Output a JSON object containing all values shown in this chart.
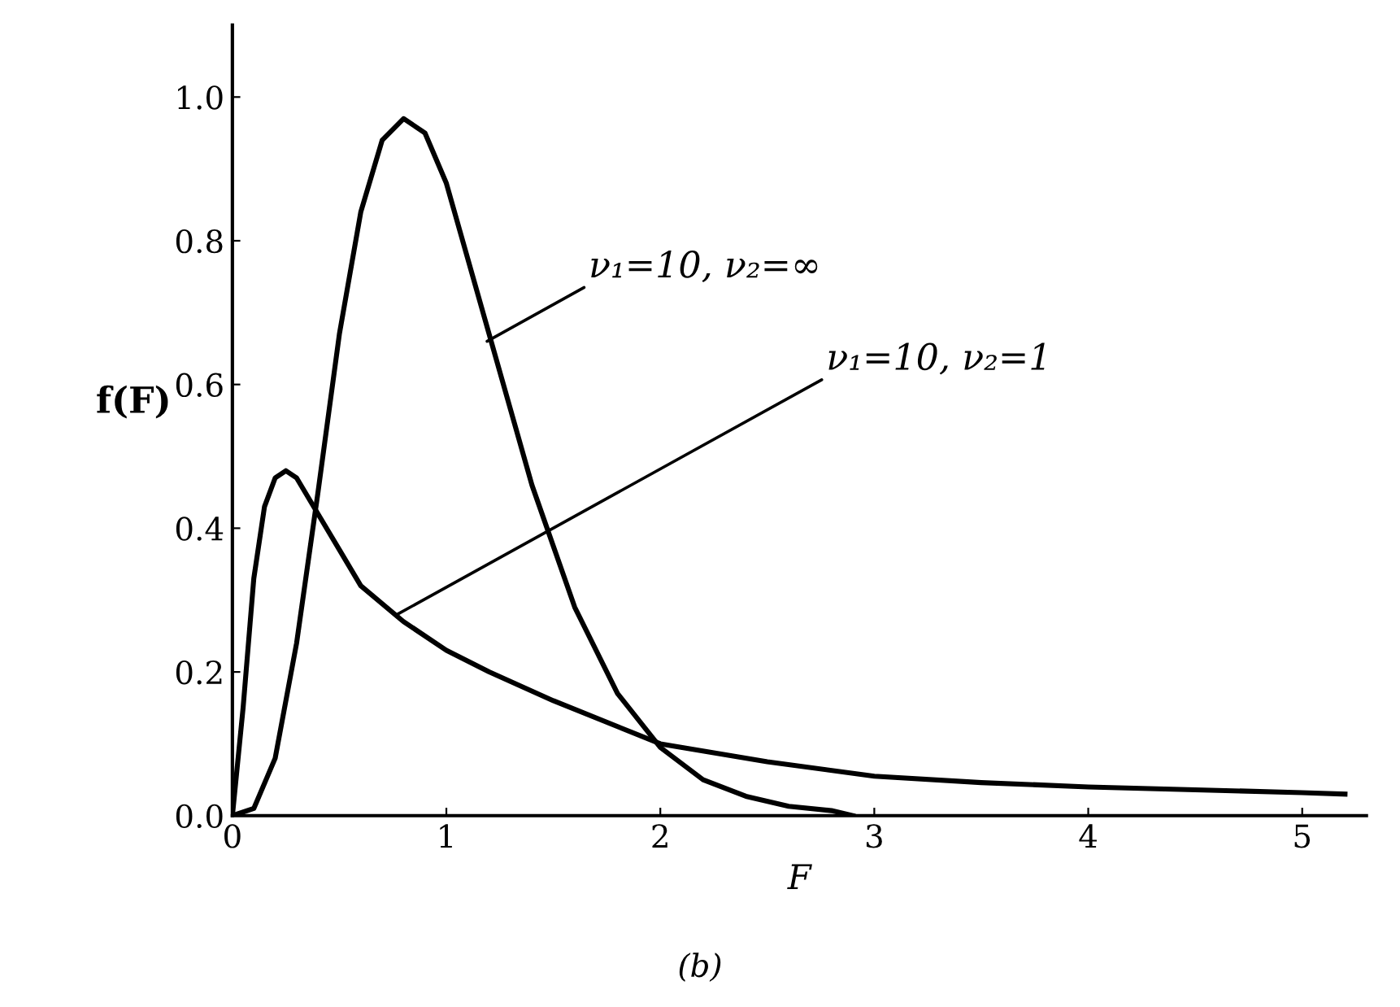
{
  "chart_data": {
    "type": "line",
    "xlabel": "F",
    "ylabel": "f(F)",
    "xlim": [
      0,
      5.3
    ],
    "ylim": [
      0,
      1.1
    ],
    "xticks": [
      0,
      1,
      2,
      3,
      4,
      5
    ],
    "yticks": [
      {
        "value": 0,
        "label": "0.0"
      },
      {
        "value": 0.2,
        "label": "0.2"
      },
      {
        "value": 0.4,
        "label": "0.4"
      },
      {
        "value": 0.6,
        "label": "0.6"
      },
      {
        "value": 0.8,
        "label": "0.8"
      },
      {
        "value": 1.0,
        "label": "1.0"
      }
    ],
    "grid": false,
    "legend": false,
    "marker": "none",
    "line_style": "solid",
    "series": [
      {
        "color": "#000000",
        "x": [
          0,
          0.1,
          0.2,
          0.3,
          0.4,
          0.5,
          0.6,
          0.7,
          0.8,
          0.9,
          1.0,
          1.2,
          1.4,
          1.6,
          1.8,
          2.0,
          2.2,
          2.4,
          2.6,
          2.8,
          2.9
        ],
        "values": [
          0,
          0.01,
          0.08,
          0.24,
          0.45,
          0.67,
          0.84,
          0.94,
          0.97,
          0.95,
          0.88,
          0.67,
          0.46,
          0.29,
          0.17,
          0.095,
          0.05,
          0.027,
          0.013,
          0.007,
          0.0
        ]
      },
      {
        "color": "#000000",
        "x": [
          0,
          0.05,
          0.1,
          0.15,
          0.2,
          0.25,
          0.3,
          0.4,
          0.5,
          0.6,
          0.8,
          1.0,
          1.2,
          1.5,
          2.0,
          2.5,
          3.0,
          3.5,
          4.0,
          4.5,
          5.0,
          5.2
        ],
        "values": [
          0,
          0.15,
          0.33,
          0.43,
          0.47,
          0.48,
          0.47,
          0.42,
          0.37,
          0.32,
          0.27,
          0.23,
          0.2,
          0.16,
          0.1,
          0.075,
          0.055,
          0.046,
          0.04,
          0.036,
          0.032,
          0.03
        ]
      }
    ],
    "annotations": [
      {
        "text": "ν₁=10, ν₂=∞",
        "x": 1.19,
        "y": 0.66
      },
      {
        "text": "ν₁=10, ν₂=1",
        "x": 0.77,
        "y": 0.28
      },
      "(b)"
    ]
  }
}
